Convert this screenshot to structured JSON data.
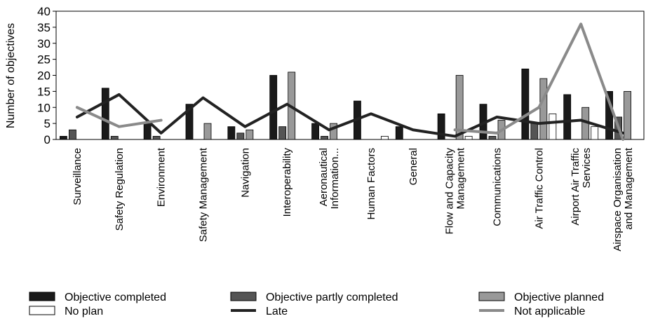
{
  "chart_data": {
    "type": "bar",
    "ylabel": "Number of objectives",
    "ylim": [
      0,
      40
    ],
    "yticks": [
      0,
      5,
      10,
      15,
      20,
      25,
      30,
      35,
      40
    ],
    "grid": false,
    "legend_position": "bottom",
    "categories": [
      [
        "Surveillance"
      ],
      [
        "Safety Regulation"
      ],
      [
        "Environment"
      ],
      [
        "Safety Management"
      ],
      [
        "Navigation"
      ],
      [
        "Interoperability"
      ],
      [
        "Aeronautical",
        "Information..."
      ],
      [
        "Human Factors"
      ],
      [
        "General"
      ],
      [
        "Flow and Capacity",
        "Management"
      ],
      [
        "Communications"
      ],
      [
        "Air Traffic Control"
      ],
      [
        "Airport Air Traffic",
        "Services"
      ],
      [
        "Airspace Organisation",
        "and Management"
      ]
    ],
    "series": [
      {
        "name": "Objective completed",
        "kind": "bar",
        "color": "#1a1a1a",
        "values": [
          1,
          16,
          5,
          11,
          4,
          20,
          5,
          12,
          4,
          8,
          11,
          22,
          14,
          15
        ]
      },
      {
        "name": "Objective partly completed",
        "kind": "bar",
        "color": "#555555",
        "values": [
          3,
          1,
          1,
          0,
          2,
          4,
          1,
          0,
          0,
          0,
          1,
          5,
          0,
          7
        ]
      },
      {
        "name": "Objective planned",
        "kind": "bar",
        "color": "#999999",
        "values": [
          0,
          0,
          0,
          5,
          3,
          21,
          5,
          0,
          0,
          20,
          6,
          19,
          10,
          15
        ]
      },
      {
        "name": "No plan",
        "kind": "bar",
        "color": "#ffffff",
        "values": [
          0,
          0,
          0,
          0,
          0,
          0,
          0,
          1,
          0,
          1,
          0,
          8,
          4,
          0
        ]
      },
      {
        "name": "Late",
        "kind": "line",
        "color": "#222222",
        "values": [
          7,
          14,
          2,
          13,
          4,
          11,
          3,
          8,
          3,
          1,
          7,
          5,
          6,
          2
        ]
      },
      {
        "name": "Not applicable",
        "kind": "line",
        "color": "#8a8a8a",
        "values": [
          10,
          4,
          6,
          null,
          null,
          null,
          null,
          null,
          null,
          3,
          2,
          10,
          36,
          0
        ]
      }
    ]
  }
}
